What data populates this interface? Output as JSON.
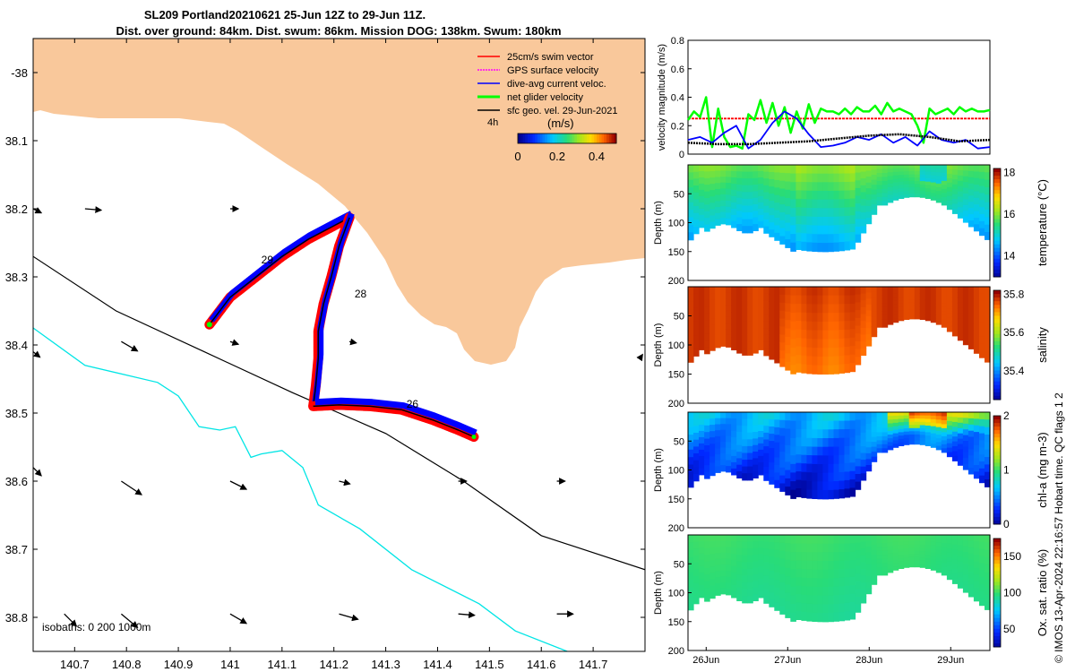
{
  "title": {
    "line1": "SL209 Portland20210621 25-Jun 12Z to 29-Jun 11Z.",
    "line2": "Dist. over ground: 84km. Dist. swum: 86km. Mission DOG: 138km. Swum: 180km"
  },
  "colors": {
    "land": "#f9c89b",
    "swim": "#ff0000",
    "gps": "#ff00ff",
    "dive": "#0000ff",
    "net": "#00ff00",
    "geo": "#000000",
    "isobath_200": "#000000",
    "isobath_1000": "#00e5e5"
  },
  "chart_data": [
    {
      "type": "map",
      "id": "track-map",
      "xlabel": "",
      "ylabel": "",
      "xlim": [
        140.62,
        141.8
      ],
      "ylim": [
        -38.85,
        -37.95
      ],
      "x_ticks": [
        140.7,
        140.8,
        140.9,
        141.0,
        141.1,
        141.2,
        141.3,
        141.4,
        141.5,
        141.6,
        141.7
      ],
      "x_tick_labels": [
        "140.7",
        "140.8",
        "140.9",
        "141",
        "141.1",
        "141.2",
        "141.3",
        "141.4",
        "141.5",
        "141.6",
        "141.7"
      ],
      "y_ticks": [
        -38.0,
        -38.1,
        -38.2,
        -38.3,
        -38.4,
        -38.5,
        -38.6,
        -38.7,
        -38.8
      ],
      "y_tick_labels": [
        "-38",
        "38.1",
        "38.2",
        "38.3",
        "38.4",
        "38.5",
        "38.6",
        "38.7",
        "38.8"
      ],
      "legend": {
        "position": "top-right",
        "entries": [
          "25cm/s swim vector",
          "GPS surface velocity",
          "dive-avg current veloc.",
          "net glider velocity",
          "sfc geo. vel. 29-Jun-2021"
        ],
        "scale_label": "4h"
      },
      "colorbar": {
        "label": "(m/s)",
        "ticks": [
          "0",
          "0.2",
          "0.4"
        ],
        "range": [
          0,
          0.5
        ]
      },
      "isobaths_label": "isobaths: 0   200  1000m",
      "day_labels": [
        {
          "text": "28",
          "lon": 141.24,
          "lat": -38.33
        },
        {
          "text": "26",
          "lon": 141.34,
          "lat": -38.492
        },
        {
          "text": "29",
          "lon": 141.06,
          "lat": -38.28
        }
      ],
      "track_leg1": [
        [
          140.96,
          -38.37
        ],
        [
          141.0,
          -38.33
        ],
        [
          141.05,
          -38.3
        ],
        [
          141.1,
          -38.27
        ],
        [
          141.15,
          -38.245
        ],
        [
          141.2,
          -38.225
        ],
        [
          141.23,
          -38.213
        ]
      ],
      "track_leg2": [
        [
          141.23,
          -38.213
        ],
        [
          141.21,
          -38.255
        ],
        [
          141.195,
          -38.3
        ],
        [
          141.18,
          -38.34
        ],
        [
          141.17,
          -38.38
        ],
        [
          141.17,
          -38.42
        ],
        [
          141.165,
          -38.46
        ],
        [
          141.16,
          -38.49
        ]
      ],
      "track_leg3": [
        [
          141.16,
          -38.49
        ],
        [
          141.21,
          -38.488
        ],
        [
          141.27,
          -38.49
        ],
        [
          141.33,
          -38.495
        ],
        [
          141.39,
          -38.51
        ],
        [
          141.44,
          -38.525
        ],
        [
          141.47,
          -38.535
        ]
      ],
      "isobath_200": [
        [
          140.62,
          -38.27
        ],
        [
          140.78,
          -38.35
        ],
        [
          140.95,
          -38.41
        ],
        [
          141.12,
          -38.47
        ],
        [
          141.3,
          -38.53
        ],
        [
          141.45,
          -38.6
        ],
        [
          141.6,
          -38.68
        ],
        [
          141.8,
          -38.73
        ]
      ],
      "isobath_1000": [
        [
          140.62,
          -38.375
        ],
        [
          140.72,
          -38.43
        ],
        [
          140.86,
          -38.455
        ],
        [
          140.9,
          -38.475
        ],
        [
          140.94,
          -38.52
        ],
        [
          140.98,
          -38.525
        ],
        [
          141.01,
          -38.52
        ],
        [
          141.04,
          -38.565
        ],
        [
          141.06,
          -38.56
        ],
        [
          141.1,
          -38.555
        ],
        [
          141.14,
          -38.58
        ],
        [
          141.17,
          -38.635
        ],
        [
          141.25,
          -38.67
        ],
        [
          141.35,
          -38.73
        ],
        [
          141.48,
          -38.78
        ],
        [
          141.55,
          -38.82
        ],
        [
          141.65,
          -38.85
        ]
      ],
      "current_vectors": [
        {
          "lon": 140.62,
          "lat": -38.2,
          "u": 0.06,
          "v": -0.03
        },
        {
          "lon": 140.72,
          "lat": -38.2,
          "u": 0.12,
          "v": -0.01
        },
        {
          "lon": 141.0,
          "lat": -38.2,
          "u": 0.06,
          "v": 0.0
        },
        {
          "lon": 140.62,
          "lat": -38.41,
          "u": 0.05,
          "v": -0.04
        },
        {
          "lon": 140.79,
          "lat": -38.395,
          "u": 0.12,
          "v": -0.07
        },
        {
          "lon": 141.0,
          "lat": -38.395,
          "u": 0.06,
          "v": -0.02
        },
        {
          "lon": 141.23,
          "lat": -38.395,
          "u": 0.05,
          "v": -0.01
        },
        {
          "lon": 140.62,
          "lat": -38.58,
          "u": 0.06,
          "v": -0.06
        },
        {
          "lon": 140.79,
          "lat": -38.6,
          "u": 0.15,
          "v": -0.1
        },
        {
          "lon": 141.0,
          "lat": -38.6,
          "u": 0.12,
          "v": -0.06
        },
        {
          "lon": 141.21,
          "lat": -38.6,
          "u": 0.08,
          "v": -0.02
        },
        {
          "lon": 141.44,
          "lat": -38.6,
          "u": 0.06,
          "v": 0.0
        },
        {
          "lon": 141.63,
          "lat": -38.6,
          "u": 0.06,
          "v": 0.0
        },
        {
          "lon": 140.68,
          "lat": -38.795,
          "u": 0.09,
          "v": -0.09
        },
        {
          "lon": 140.79,
          "lat": -38.795,
          "u": 0.12,
          "v": -0.1
        },
        {
          "lon": 141.0,
          "lat": -38.795,
          "u": 0.12,
          "v": -0.07
        },
        {
          "lon": 141.21,
          "lat": -38.795,
          "u": 0.14,
          "v": -0.04
        },
        {
          "lon": 141.44,
          "lat": -38.795,
          "u": 0.12,
          "v": -0.01
        },
        {
          "lon": 141.63,
          "lat": -38.795,
          "u": 0.12,
          "v": 0.0
        },
        {
          "lon": 141.79,
          "lat": -38.42,
          "u": 0.02,
          "v": 0.03
        }
      ]
    },
    {
      "type": "line",
      "id": "velocity-panel",
      "ylabel": "velocity magnitude (m/s)",
      "xlim": [
        0,
        1
      ],
      "ylim": [
        0,
        0.8
      ],
      "y_ticks": [
        0,
        0.2,
        0.4,
        0.6,
        0.8
      ],
      "y_tick_labels": [
        "0",
        "0.2",
        "0.4",
        "0.6",
        "0.8"
      ],
      "series": [
        {
          "name": "swim vector",
          "color": "#ff0000",
          "x": [
            0,
            1
          ],
          "values": [
            0.25,
            0.25
          ]
        },
        {
          "name": "net glider velocity",
          "color": "#00ff00",
          "x": [
            0,
            0.02,
            0.04,
            0.06,
            0.08,
            0.1,
            0.12,
            0.14,
            0.16,
            0.18,
            0.2,
            0.22,
            0.24,
            0.26,
            0.28,
            0.3,
            0.32,
            0.34,
            0.36,
            0.38,
            0.4,
            0.42,
            0.44,
            0.46,
            0.48,
            0.5,
            0.52,
            0.54,
            0.56,
            0.58,
            0.6,
            0.62,
            0.64,
            0.66,
            0.68,
            0.7,
            0.72,
            0.74,
            0.76,
            0.78,
            0.8,
            0.82,
            0.84,
            0.86,
            0.88,
            0.9,
            0.92,
            0.94,
            0.96,
            0.98,
            1.0
          ],
          "values": [
            0.24,
            0.3,
            0.26,
            0.4,
            0.05,
            0.32,
            0.12,
            0.05,
            0.06,
            0.04,
            0.28,
            0.24,
            0.38,
            0.22,
            0.36,
            0.2,
            0.33,
            0.15,
            0.3,
            0.18,
            0.35,
            0.22,
            0.32,
            0.3,
            0.3,
            0.28,
            0.32,
            0.28,
            0.33,
            0.3,
            0.3,
            0.34,
            0.28,
            0.36,
            0.3,
            0.32,
            0.3,
            0.28,
            0.2,
            0.08,
            0.32,
            0.28,
            0.3,
            0.32,
            0.28,
            0.33,
            0.3,
            0.32,
            0.3,
            0.3,
            0.31
          ]
        },
        {
          "name": "dive-avg current",
          "color": "#0000ff",
          "x": [
            0,
            0.04,
            0.08,
            0.12,
            0.16,
            0.2,
            0.24,
            0.28,
            0.32,
            0.36,
            0.4,
            0.44,
            0.48,
            0.52,
            0.56,
            0.6,
            0.64,
            0.68,
            0.72,
            0.76,
            0.8,
            0.84,
            0.88,
            0.92,
            0.96,
            1.0
          ],
          "values": [
            0.1,
            0.12,
            0.08,
            0.15,
            0.2,
            0.04,
            0.1,
            0.22,
            0.3,
            0.25,
            0.14,
            0.05,
            0.06,
            0.08,
            0.12,
            0.1,
            0.14,
            0.08,
            0.12,
            0.06,
            0.16,
            0.1,
            0.08,
            0.1,
            0.04,
            0.05
          ]
        },
        {
          "name": "sfc geo vel",
          "color": "#000000",
          "x": [
            0,
            0.1,
            0.2,
            0.3,
            0.4,
            0.5,
            0.6,
            0.7,
            0.8,
            0.9,
            1.0
          ],
          "values": [
            0.08,
            0.07,
            0.07,
            0.08,
            0.09,
            0.11,
            0.13,
            0.14,
            0.12,
            0.09,
            0.1
          ]
        }
      ]
    },
    {
      "type": "heatmap",
      "id": "temperature-panel",
      "ylabel": "Depth (m)",
      "ylim": [
        200,
        0
      ],
      "y_ticks": [
        50,
        100,
        150,
        200
      ],
      "y_tick_labels": [
        "50",
        "100",
        "150",
        "200"
      ],
      "colorbar_label": "temperature (°C)",
      "colorbar_range": [
        13,
        18.2
      ],
      "colorbar_ticks": [
        "14",
        "16",
        "18"
      ],
      "colorbar_tick_values": [
        14,
        16,
        18
      ],
      "colorscale": "parula-jet"
    },
    {
      "type": "heatmap",
      "id": "salinity-panel",
      "ylabel": "Depth (m)",
      "ylim": [
        200,
        0
      ],
      "y_ticks": [
        50,
        100,
        150,
        200
      ],
      "y_tick_labels": [
        "50",
        "100",
        "150",
        "200"
      ],
      "colorbar_label": "salinity",
      "colorbar_range": [
        35.25,
        35.82
      ],
      "colorbar_ticks": [
        "35.4",
        "35.6",
        "35.8"
      ],
      "colorbar_tick_values": [
        35.4,
        35.6,
        35.8
      ],
      "colorscale": "parula-jet"
    },
    {
      "type": "heatmap",
      "id": "chl-panel",
      "ylabel": "Depth (m)",
      "ylim": [
        200,
        0
      ],
      "y_ticks": [
        50,
        100,
        150,
        200
      ],
      "y_tick_labels": [
        "50",
        "100",
        "150",
        "200"
      ],
      "colorbar_label": "chl-a (mg m-3)",
      "colorbar_range": [
        0,
        2
      ],
      "colorbar_ticks": [
        "0",
        "1",
        "2"
      ],
      "colorbar_tick_values": [
        0,
        1,
        2
      ],
      "colorscale": "parula-jet"
    },
    {
      "type": "heatmap",
      "id": "oxygen-panel",
      "ylabel": "Depth (m)",
      "ylim": [
        200,
        0
      ],
      "y_ticks": [
        50,
        100,
        150,
        200
      ],
      "y_tick_labels": [
        "50",
        "100",
        "150",
        "200"
      ],
      "x_tick_labels": [
        "26Jun",
        "27Jun",
        "28Jun",
        "29Jun"
      ],
      "x_tick_values": [
        0.17,
        0.44,
        0.71,
        0.98
      ],
      "colorbar_label": "Ox. sat. ratio (%)",
      "colorbar_range": [
        25,
        175
      ],
      "colorbar_ticks": [
        "50",
        "100",
        "150"
      ],
      "colorbar_tick_values": [
        50,
        100,
        150
      ],
      "colorscale": "parula-jet"
    }
  ],
  "footer": {
    "credit": "© IMOS 13-Apr-2024 22:16:57 Hobart time. QC flags 1  2"
  }
}
